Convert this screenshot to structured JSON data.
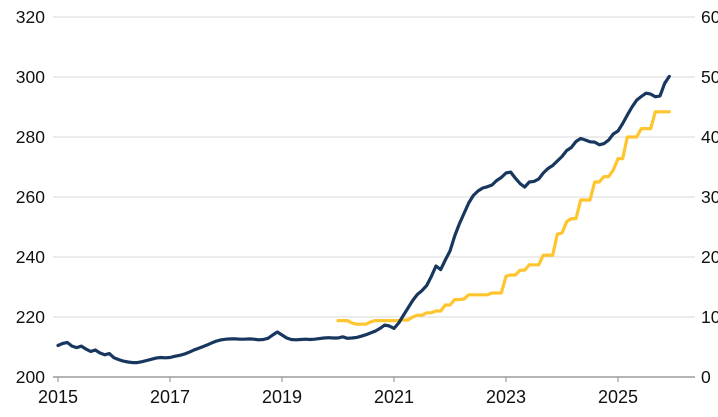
{
  "colors": {
    "navy": "#17375E",
    "gold": "#FFC52E",
    "gridline": "#D8D8D8",
    "axis_line": "#9B9B9B",
    "label_text": "#111111",
    "background": "#FFFFFF"
  },
  "chart_data": {
    "type": "line",
    "title": "",
    "grid": true,
    "legend_position": "none",
    "x_axis": {
      "tick_labels": [
        "2015",
        "2017",
        "2019",
        "2021",
        "2023",
        "2025"
      ],
      "tick_years": [
        2015,
        2017,
        2019,
        2021,
        2023,
        2025
      ],
      "range_years": [
        2015,
        2026.4
      ]
    },
    "left_axis": {
      "ticks": [
        200,
        220,
        240,
        260,
        280,
        300,
        320
      ],
      "tick_labels": [
        "200",
        "220",
        "240",
        "260",
        "280",
        "300",
        "320"
      ],
      "range": [
        200,
        320
      ]
    },
    "right_axis": {
      "ticks": [
        0,
        10,
        20,
        30,
        40,
        50,
        60
      ],
      "tick_labels": [
        "0",
        "10",
        "20",
        "30",
        "40",
        "50",
        "60"
      ],
      "range": [
        0,
        60
      ]
    },
    "series": [
      {
        "name": "navy-line",
        "axis": "left",
        "color": "#17375E",
        "frequency": "monthly",
        "start": "2015-01",
        "values": [
          210.5,
          211.2,
          211.5,
          210.3,
          209.8,
          210.3,
          209.3,
          208.5,
          209.0,
          208.0,
          207.4,
          207.8,
          206.4,
          205.8,
          205.3,
          205.0,
          204.8,
          204.8,
          205.1,
          205.5,
          205.9,
          206.3,
          206.5,
          206.4,
          206.5,
          206.9,
          207.2,
          207.6,
          208.2,
          208.9,
          209.5,
          210.1,
          210.7,
          211.4,
          212.0,
          212.4,
          212.6,
          212.7,
          212.7,
          212.6,
          212.6,
          212.7,
          212.6,
          212.4,
          212.5,
          212.9,
          214.0,
          215.0,
          214.0,
          213.0,
          212.5,
          212.4,
          212.5,
          212.6,
          212.5,
          212.6,
          212.8,
          213.0,
          213.1,
          213.0,
          213.0,
          213.4,
          212.9,
          213.0,
          213.2,
          213.6,
          214.1,
          214.7,
          215.3,
          216.2,
          217.3,
          217.0,
          216.2,
          218.0,
          220.5,
          223.0,
          225.5,
          227.5,
          228.8,
          230.5,
          233.5,
          237.0,
          235.8,
          239.0,
          242.0,
          247.0,
          251.0,
          254.5,
          258.0,
          260.5,
          262.0,
          263.0,
          263.4,
          264.0,
          265.5,
          266.5,
          268.0,
          268.3,
          266.3,
          264.5,
          263.3,
          265.0,
          265.2,
          266.0,
          268.0,
          269.5,
          270.5,
          272.0,
          273.5,
          275.5,
          276.5,
          278.5,
          279.5,
          279.0,
          278.4,
          278.3,
          277.4,
          277.8,
          279.0,
          281.0,
          282.0,
          284.5,
          287.3,
          290.0,
          292.3,
          293.5,
          294.6,
          294.3,
          293.4,
          293.7,
          297.9,
          300.2
        ]
      },
      {
        "name": "gold-line",
        "axis": "right",
        "color": "#FFC52E",
        "frequency": "monthly",
        "start": "2020-01",
        "values": [
          9.4,
          9.4,
          9.4,
          9.0,
          8.8,
          8.8,
          8.8,
          9.2,
          9.4,
          9.4,
          9.4,
          9.4,
          9.4,
          9.4,
          9.5,
          9.5,
          10.0,
          10.3,
          10.3,
          10.7,
          10.7,
          11.0,
          11.0,
          12.0,
          12.0,
          12.9,
          12.9,
          13.0,
          13.7,
          13.7,
          13.7,
          13.7,
          13.7,
          14.0,
          14.0,
          14.0,
          16.8,
          17.0,
          17.0,
          17.8,
          17.8,
          18.7,
          18.7,
          18.7,
          20.3,
          20.3,
          20.3,
          23.8,
          24.0,
          25.9,
          26.4,
          26.4,
          29.5,
          29.5,
          29.5,
          32.5,
          32.5,
          33.4,
          33.4,
          34.5,
          36.4,
          36.4,
          40.0,
          40.0,
          40.0,
          41.4,
          41.4,
          41.4,
          44.2,
          44.2,
          44.2,
          44.2
        ]
      }
    ]
  }
}
